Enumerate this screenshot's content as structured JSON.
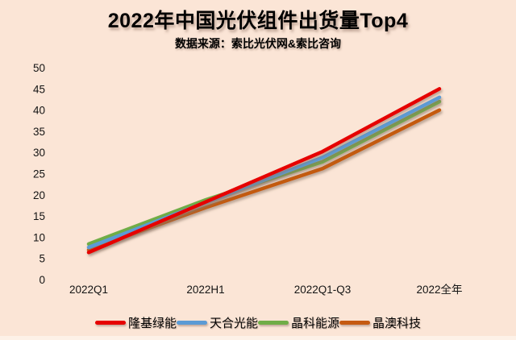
{
  "chart_data": {
    "type": "line",
    "title": "2022年中国光伏组件出货量Top4",
    "subtitle": "数据来源：索比光伏网&索比咨询",
    "categories": [
      "2022Q1",
      "2022H1",
      "2022Q1-Q3",
      "2022全年"
    ],
    "series": [
      {
        "name": "隆基绿能",
        "color": "#e60000",
        "values": [
          6.4,
          18.3,
          30.2,
          45
        ]
      },
      {
        "name": "天合光能",
        "color": "#5b9bd5",
        "values": [
          7.6,
          18.2,
          28.8,
          43
        ]
      },
      {
        "name": "晶科能源",
        "color": "#70ad47",
        "values": [
          8.4,
          18.8,
          27.8,
          42
        ]
      },
      {
        "name": "晶澳科技",
        "color": "#c55a11",
        "values": [
          7.0,
          17.0,
          26.2,
          40
        ]
      }
    ],
    "ylim": [
      0,
      50
    ],
    "yticks": [
      0,
      5,
      10,
      15,
      20,
      25,
      30,
      35,
      40,
      45,
      50
    ],
    "grid": false,
    "axis_lines": false,
    "legend_position": "bottom",
    "background_color": "#fbe5d6"
  }
}
